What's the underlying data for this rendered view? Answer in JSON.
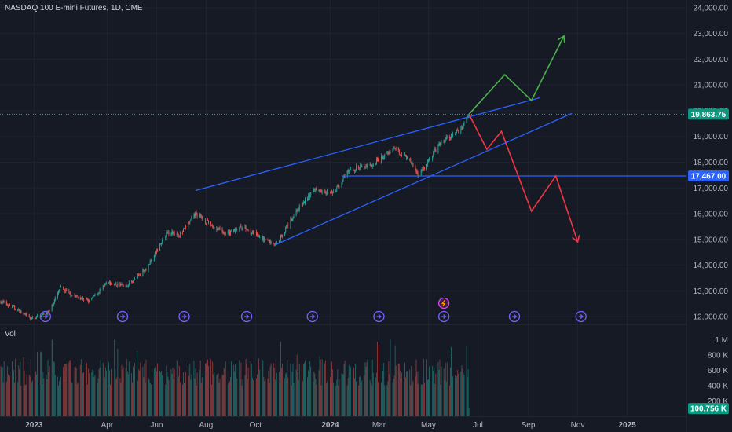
{
  "header": {
    "title": "NASDAQ 100 E-mini Futures, 1D, CME"
  },
  "volume_pane": {
    "label": "Vol"
  },
  "colors": {
    "background": "#161a25",
    "grid": "#1f2330",
    "up": "#26a69a",
    "down": "#ef5350",
    "trendline": "#2962ff",
    "bull_path": "#4caf50",
    "bear_path": "#f23645",
    "event_icon": "#7b61ff"
  },
  "price_tags": {
    "last": {
      "value": 19863.75,
      "label": "19,863.75",
      "color": "#089981"
    },
    "level": {
      "value": 17467.0,
      "label": "17,467.00",
      "color": "#2962ff"
    },
    "volume": {
      "value": 100756,
      "label": "100.756 K",
      "color": "#089981"
    }
  },
  "chart_data": {
    "type": "candlestick",
    "symbol": "NASDAQ 100 E-mini Futures",
    "interval": "1D",
    "exchange": "CME",
    "price_axis": {
      "ticks": [
        12000,
        13000,
        14000,
        15000,
        16000,
        17000,
        18000,
        19000,
        20000,
        21000,
        22000,
        23000,
        24000
      ],
      "tick_labels": [
        "12,000.00",
        "13,000.00",
        "14,000.00",
        "15,000.00",
        "16,000.00",
        "17,000.00",
        "18,000.00",
        "19,000.00",
        "20,000.00",
        "21,000.00",
        "22,000.00",
        "23,000.00",
        "24,000.00"
      ],
      "range": [
        11700,
        24300
      ]
    },
    "volume_axis": {
      "ticks": [
        200000,
        400000,
        600000,
        800000,
        1000000
      ],
      "tick_labels": [
        "200 K",
        "400 K",
        "600 K",
        "800 K",
        "1 M"
      ],
      "range": [
        0,
        1200000
      ]
    },
    "time_axis": {
      "labels": [
        "2023",
        "Apr",
        "Jun",
        "Aug",
        "Oct",
        "2024",
        "Mar",
        "May",
        "Jul",
        "Sep",
        "Nov",
        "2025"
      ],
      "label_bold": [
        true,
        false,
        false,
        false,
        false,
        true,
        false,
        false,
        false,
        false,
        false,
        true
      ],
      "label_dates": [
        "2023-01-01",
        "2023-04-01",
        "2023-06-01",
        "2023-08-01",
        "2023-10-01",
        "2024-01-01",
        "2024-03-01",
        "2024-05-01",
        "2024-07-01",
        "2024-09-01",
        "2024-11-01",
        "2025-01-01"
      ],
      "range": [
        "2022-11-20",
        "2025-03-15"
      ]
    },
    "price_series": [
      {
        "date": "2022-11-20",
        "close": 12600
      },
      {
        "date": "2022-12-10",
        "close": 12300
      },
      {
        "date": "2022-12-28",
        "close": 11900
      },
      {
        "date": "2023-01-20",
        "close": 12200
      },
      {
        "date": "2023-02-02",
        "close": 13100
      },
      {
        "date": "2023-02-20",
        "close": 12800
      },
      {
        "date": "2023-03-10",
        "close": 12600
      },
      {
        "date": "2023-04-01",
        "close": 13300
      },
      {
        "date": "2023-04-25",
        "close": 13200
      },
      {
        "date": "2023-05-20",
        "close": 13900
      },
      {
        "date": "2023-06-15",
        "close": 15300
      },
      {
        "date": "2023-07-01",
        "close": 15200
      },
      {
        "date": "2023-07-19",
        "close": 16000
      },
      {
        "date": "2023-08-10",
        "close": 15500
      },
      {
        "date": "2023-08-25",
        "close": 15200
      },
      {
        "date": "2023-09-15",
        "close": 15500
      },
      {
        "date": "2023-10-05",
        "close": 15100
      },
      {
        "date": "2023-10-26",
        "close": 14800
      },
      {
        "date": "2023-11-20",
        "close": 16100
      },
      {
        "date": "2023-12-15",
        "close": 17000
      },
      {
        "date": "2024-01-05",
        "close": 16800
      },
      {
        "date": "2024-01-25",
        "close": 17700
      },
      {
        "date": "2024-02-20",
        "close": 17900
      },
      {
        "date": "2024-03-20",
        "close": 18500
      },
      {
        "date": "2024-04-05",
        "close": 18200
      },
      {
        "date": "2024-04-19",
        "close": 17500
      },
      {
        "date": "2024-05-15",
        "close": 18700
      },
      {
        "date": "2024-06-10",
        "close": 19300
      },
      {
        "date": "2024-06-20",
        "close": 19863.75
      }
    ],
    "trendlines": [
      {
        "name": "",
        "points": [
          {
            "date": "2023-07-19",
            "price": 16900
          },
          {
            "date": "2024-09-15",
            "price": 20500
          }
        ],
        "color": "#2962ff"
      },
      {
        "name": "",
        "points": [
          {
            "date": "2023-10-26",
            "price": 14800
          },
          {
            "date": "2024-10-25",
            "price": 19900
          }
        ],
        "color": "#2962ff"
      },
      {
        "name": "",
        "points": [
          {
            "date": "2024-01-15",
            "price": 17467
          },
          {
            "date": "2025-03-15",
            "price": 17467
          }
        ],
        "color": "#2962ff"
      }
    ],
    "scenarios": [
      {
        "name": "",
        "color": "#4caf50",
        "points": [
          {
            "date": "2024-06-20",
            "price": 19863.75
          },
          {
            "date": "2024-08-03",
            "price": 21400
          },
          {
            "date": "2024-09-05",
            "price": 20400
          },
          {
            "date": "2024-10-15",
            "price": 22900
          }
        ]
      },
      {
        "name": "",
        "color": "#f23645",
        "points": [
          {
            "date": "2024-06-20",
            "price": 19863.75
          },
          {
            "date": "2024-07-12",
            "price": 18500
          },
          {
            "date": "2024-07-30",
            "price": 19200
          },
          {
            "date": "2024-09-05",
            "price": 16100
          },
          {
            "date": "2024-10-05",
            "price": 17467
          },
          {
            "date": "2024-11-01",
            "price": 14900
          }
        ]
      }
    ],
    "event_markers": [
      "2023-01-15",
      "2023-04-20",
      "2023-07-05",
      "2023-09-20",
      "2023-12-10",
      "2024-03-01",
      "2024-05-20",
      "2024-08-15",
      "2024-11-05"
    ],
    "earnings_marker": "2024-05-20",
    "last_price": 19863.75,
    "volume_last": 100756,
    "volume_typical_range": [
      400000,
      750000
    ],
    "grid": true
  }
}
